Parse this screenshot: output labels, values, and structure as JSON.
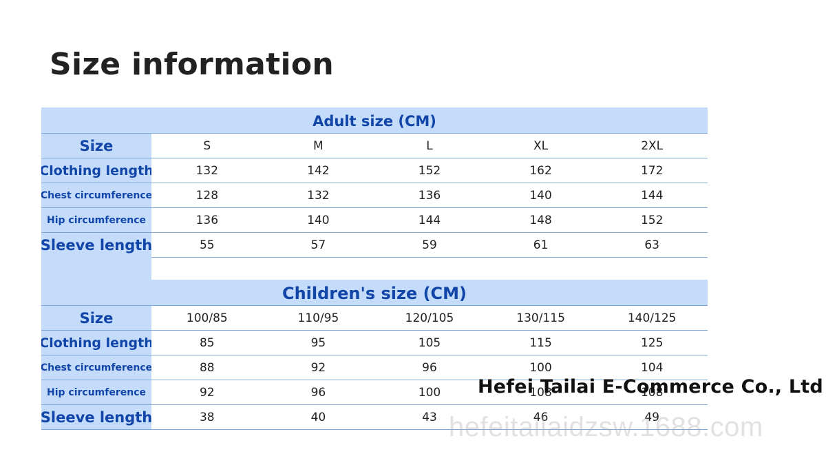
{
  "page_title": "Size information",
  "adult": {
    "header": "Adult size (CM)",
    "rows": [
      {
        "label": "Size",
        "values": [
          "S",
          "M",
          "L",
          "XL",
          "2XL"
        ]
      },
      {
        "label": "Clothing length",
        "values": [
          "132",
          "142",
          "152",
          "162",
          "172"
        ]
      },
      {
        "label": "Chest circumference",
        "values": [
          "128",
          "132",
          "136",
          "140",
          "144"
        ]
      },
      {
        "label": "Hip circumference",
        "values": [
          "136",
          "140",
          "144",
          "148",
          "152"
        ]
      },
      {
        "label": "Sleeve length",
        "values": [
          "55",
          "57",
          "59",
          "61",
          "63"
        ]
      }
    ]
  },
  "children": {
    "header": "Children's size (CM)",
    "rows": [
      {
        "label": "Size",
        "values": [
          "100/85",
          "110/95",
          "120/105",
          "130/115",
          "140/125"
        ]
      },
      {
        "label": "Clothing length",
        "values": [
          "85",
          "95",
          "105",
          "115",
          "125"
        ]
      },
      {
        "label": "Chest circumference",
        "values": [
          "88",
          "92",
          "96",
          "100",
          "104"
        ]
      },
      {
        "label": "Hip circumference",
        "values": [
          "92",
          "96",
          "100",
          "108",
          "108"
        ]
      },
      {
        "label": "Sleeve length",
        "values": [
          "38",
          "40",
          "43",
          "46",
          "49"
        ]
      }
    ]
  },
  "overlay": {
    "company_name": "Hefei Tailai E-Commerce Co., Ltd",
    "watermark": "hefeitailaidzsw.1688.com"
  },
  "colors": {
    "header_bg": "#c4dcfa",
    "header_text": "#1245a8",
    "row_border": "#7fa7d6"
  }
}
